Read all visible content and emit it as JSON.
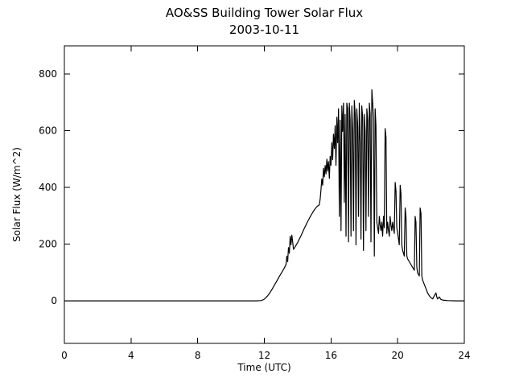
{
  "chart_data": {
    "type": "line",
    "title": "AO&SS Building Tower Solar Flux",
    "subtitle": "2003-10-11",
    "xlabel": "Time (UTC)",
    "ylabel": "Solar Flux (W/m^2)",
    "xlim": [
      0,
      24
    ],
    "ylim": [
      -150,
      900
    ],
    "xticks": [
      0,
      4,
      8,
      12,
      16,
      20,
      24
    ],
    "yticks": [
      0,
      200,
      400,
      600,
      800
    ],
    "grid": false,
    "line_color": "#000000",
    "background": "#ffffff",
    "points": [
      [
        0,
        0
      ],
      [
        2,
        0
      ],
      [
        4,
        0
      ],
      [
        6,
        0
      ],
      [
        8,
        0
      ],
      [
        10,
        0
      ],
      [
        11,
        0
      ],
      [
        11.5,
        0
      ],
      [
        11.8,
        1
      ],
      [
        11.9,
        3
      ],
      [
        12.0,
        6
      ],
      [
        12.1,
        12
      ],
      [
        12.2,
        18
      ],
      [
        12.3,
        26
      ],
      [
        12.4,
        35
      ],
      [
        12.5,
        45
      ],
      [
        12.6,
        55
      ],
      [
        12.7,
        65
      ],
      [
        12.8,
        76
      ],
      [
        12.9,
        86
      ],
      [
        13.0,
        96
      ],
      [
        13.1,
        106
      ],
      [
        13.2,
        116
      ],
      [
        13.3,
        128
      ],
      [
        13.35,
        158
      ],
      [
        13.4,
        138
      ],
      [
        13.45,
        188
      ],
      [
        13.5,
        168
      ],
      [
        13.55,
        228
      ],
      [
        13.6,
        198
      ],
      [
        13.65,
        232
      ],
      [
        13.7,
        208
      ],
      [
        13.75,
        182
      ],
      [
        13.8,
        186
      ],
      [
        13.9,
        196
      ],
      [
        14.0,
        206
      ],
      [
        14.1,
        218
      ],
      [
        14.2,
        230
      ],
      [
        14.3,
        243
      ],
      [
        14.4,
        256
      ],
      [
        14.5,
        268
      ],
      [
        14.6,
        280
      ],
      [
        14.7,
        291
      ],
      [
        14.8,
        302
      ],
      [
        14.9,
        312
      ],
      [
        15.0,
        321
      ],
      [
        15.1,
        329
      ],
      [
        15.2,
        335
      ],
      [
        15.3,
        339
      ],
      [
        15.35,
        360
      ],
      [
        15.4,
        392
      ],
      [
        15.45,
        430
      ],
      [
        15.5,
        408
      ],
      [
        15.55,
        468
      ],
      [
        15.6,
        438
      ],
      [
        15.65,
        478
      ],
      [
        15.7,
        448
      ],
      [
        15.75,
        500
      ],
      [
        15.8,
        458
      ],
      [
        15.85,
        492
      ],
      [
        15.9,
        432
      ],
      [
        15.95,
        510
      ],
      [
        16.0,
        478
      ],
      [
        16.05,
        558
      ],
      [
        16.1,
        498
      ],
      [
        16.15,
        588
      ],
      [
        16.2,
        538
      ],
      [
        16.25,
        618
      ],
      [
        16.3,
        478
      ],
      [
        16.35,
        648
      ],
      [
        16.4,
        558
      ],
      [
        16.45,
        678
      ],
      [
        16.5,
        298
      ],
      [
        16.55,
        638
      ],
      [
        16.6,
        248
      ],
      [
        16.65,
        688
      ],
      [
        16.7,
        598
      ],
      [
        16.75,
        698
      ],
      [
        16.8,
        348
      ],
      [
        16.85,
        658
      ],
      [
        16.9,
        228
      ],
      [
        16.95,
        698
      ],
      [
        17.0,
        678
      ],
      [
        17.05,
        208
      ],
      [
        17.1,
        698
      ],
      [
        17.15,
        638
      ],
      [
        17.2,
        228
      ],
      [
        17.25,
        688
      ],
      [
        17.3,
        598
      ],
      [
        17.35,
        248
      ],
      [
        17.4,
        708
      ],
      [
        17.45,
        658
      ],
      [
        17.5,
        198
      ],
      [
        17.55,
        678
      ],
      [
        17.6,
        618
      ],
      [
        17.65,
        298
      ],
      [
        17.7,
        698
      ],
      [
        17.75,
        558
      ],
      [
        17.8,
        218
      ],
      [
        17.85,
        688
      ],
      [
        17.9,
        648
      ],
      [
        17.95,
        178
      ],
      [
        18.0,
        658
      ],
      [
        18.05,
        598
      ],
      [
        18.1,
        248
      ],
      [
        18.15,
        678
      ],
      [
        18.2,
        638
      ],
      [
        18.25,
        298
      ],
      [
        18.3,
        698
      ],
      [
        18.35,
        658
      ],
      [
        18.4,
        208
      ],
      [
        18.45,
        745
      ],
      [
        18.5,
        698
      ],
      [
        18.55,
        648
      ],
      [
        18.6,
        158
      ],
      [
        18.65,
        678
      ],
      [
        18.7,
        618
      ],
      [
        18.75,
        278
      ],
      [
        18.8,
        258
      ],
      [
        18.85,
        238
      ],
      [
        18.9,
        298
      ],
      [
        18.95,
        268
      ],
      [
        19.0,
        248
      ],
      [
        19.05,
        278
      ],
      [
        19.1,
        228
      ],
      [
        19.15,
        298
      ],
      [
        19.2,
        258
      ],
      [
        19.25,
        608
      ],
      [
        19.3,
        578
      ],
      [
        19.35,
        238
      ],
      [
        19.4,
        278
      ],
      [
        19.45,
        248
      ],
      [
        19.5,
        228
      ],
      [
        19.55,
        298
      ],
      [
        19.6,
        268
      ],
      [
        19.65,
        248
      ],
      [
        19.7,
        278
      ],
      [
        19.75,
        258
      ],
      [
        19.8,
        238
      ],
      [
        19.85,
        418
      ],
      [
        19.9,
        388
      ],
      [
        19.95,
        258
      ],
      [
        20.0,
        238
      ],
      [
        20.05,
        218
      ],
      [
        20.1,
        198
      ],
      [
        20.15,
        408
      ],
      [
        20.2,
        378
      ],
      [
        20.25,
        198
      ],
      [
        20.3,
        178
      ],
      [
        20.35,
        168
      ],
      [
        20.4,
        158
      ],
      [
        20.45,
        328
      ],
      [
        20.5,
        298
      ],
      [
        20.55,
        158
      ],
      [
        20.6,
        148
      ],
      [
        20.7,
        138
      ],
      [
        20.8,
        128
      ],
      [
        20.9,
        118
      ],
      [
        21.0,
        108
      ],
      [
        21.05,
        298
      ],
      [
        21.1,
        278
      ],
      [
        21.15,
        118
      ],
      [
        21.2,
        98
      ],
      [
        21.3,
        88
      ],
      [
        21.35,
        328
      ],
      [
        21.4,
        308
      ],
      [
        21.45,
        88
      ],
      [
        21.5,
        73
      ],
      [
        21.6,
        58
      ],
      [
        21.7,
        43
      ],
      [
        21.8,
        28
      ],
      [
        21.9,
        18
      ],
      [
        22.0,
        11
      ],
      [
        22.1,
        7
      ],
      [
        22.2,
        18
      ],
      [
        22.3,
        28
      ],
      [
        22.35,
        14
      ],
      [
        22.4,
        7
      ],
      [
        22.5,
        14
      ],
      [
        22.6,
        5
      ],
      [
        22.7,
        3
      ],
      [
        22.8,
        2
      ],
      [
        23.0,
        1
      ],
      [
        23.5,
        0
      ],
      [
        24,
        0
      ]
    ]
  }
}
